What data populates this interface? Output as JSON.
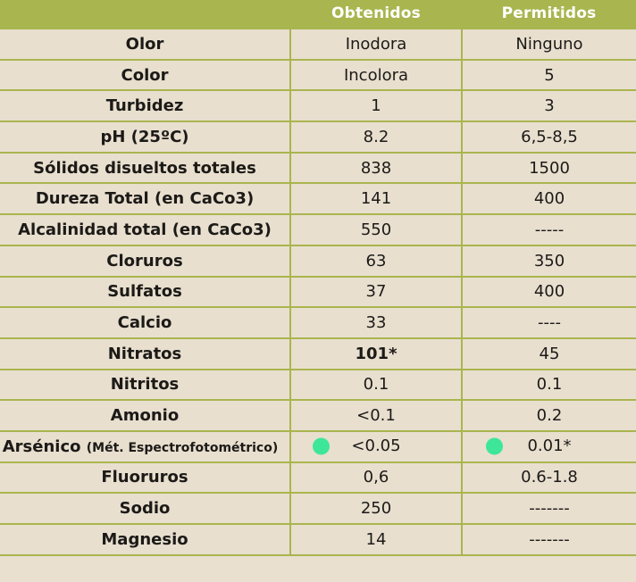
{
  "header": {
    "col_parameter": "",
    "col_obtenidos": "Obtenidos",
    "col_permitidos": "Permitidos"
  },
  "colors": {
    "header_green": "#a9b54e",
    "background": "#e9e0d0",
    "marker_dot": "#3ee69a"
  },
  "rows": [
    {
      "param": "Olor",
      "obtenido": "Inodora",
      "permitido": "Ninguno"
    },
    {
      "param": "Color",
      "obtenido": "Incolora",
      "permitido": "5"
    },
    {
      "param": "Turbidez",
      "obtenido": "1",
      "permitido": "3"
    },
    {
      "param": "pH (25ºC)",
      "obtenido": "8.2",
      "permitido": "6,5-8,5"
    },
    {
      "param": "Sólidos disueltos totales",
      "obtenido": "838",
      "permitido": "1500"
    },
    {
      "param": "Dureza Total (en CaCo3)",
      "obtenido": "141",
      "permitido": "400"
    },
    {
      "param": "Alcalinidad total (en CaCo3)",
      "obtenido": "550",
      "permitido": "-----"
    },
    {
      "param": "Cloruros",
      "obtenido": "63",
      "permitido": "350"
    },
    {
      "param": "Sulfatos",
      "obtenido": "37",
      "permitido": "400"
    },
    {
      "param": "Calcio",
      "obtenido": "33",
      "permitido": "----"
    },
    {
      "param": "Nitratos",
      "obtenido": "101*",
      "permitido": "45"
    },
    {
      "param": "Nitritos",
      "obtenido": "0.1",
      "permitido": "0.1"
    },
    {
      "param": "Amonio",
      "obtenido": "<0.1",
      "permitido": "0.2"
    },
    {
      "param": "Arsénico",
      "param_sub": "(Mét. Espectrofotométrico)",
      "obtenido": "<0.05",
      "permitido": "0.01*"
    },
    {
      "param": "Fluoruros",
      "obtenido": "0,6",
      "permitido": "0.6-1.8"
    },
    {
      "param": "Sodio",
      "obtenido": "250",
      "permitido": "-------"
    },
    {
      "param": "Magnesio",
      "obtenido": "14",
      "permitido": "-------"
    }
  ]
}
